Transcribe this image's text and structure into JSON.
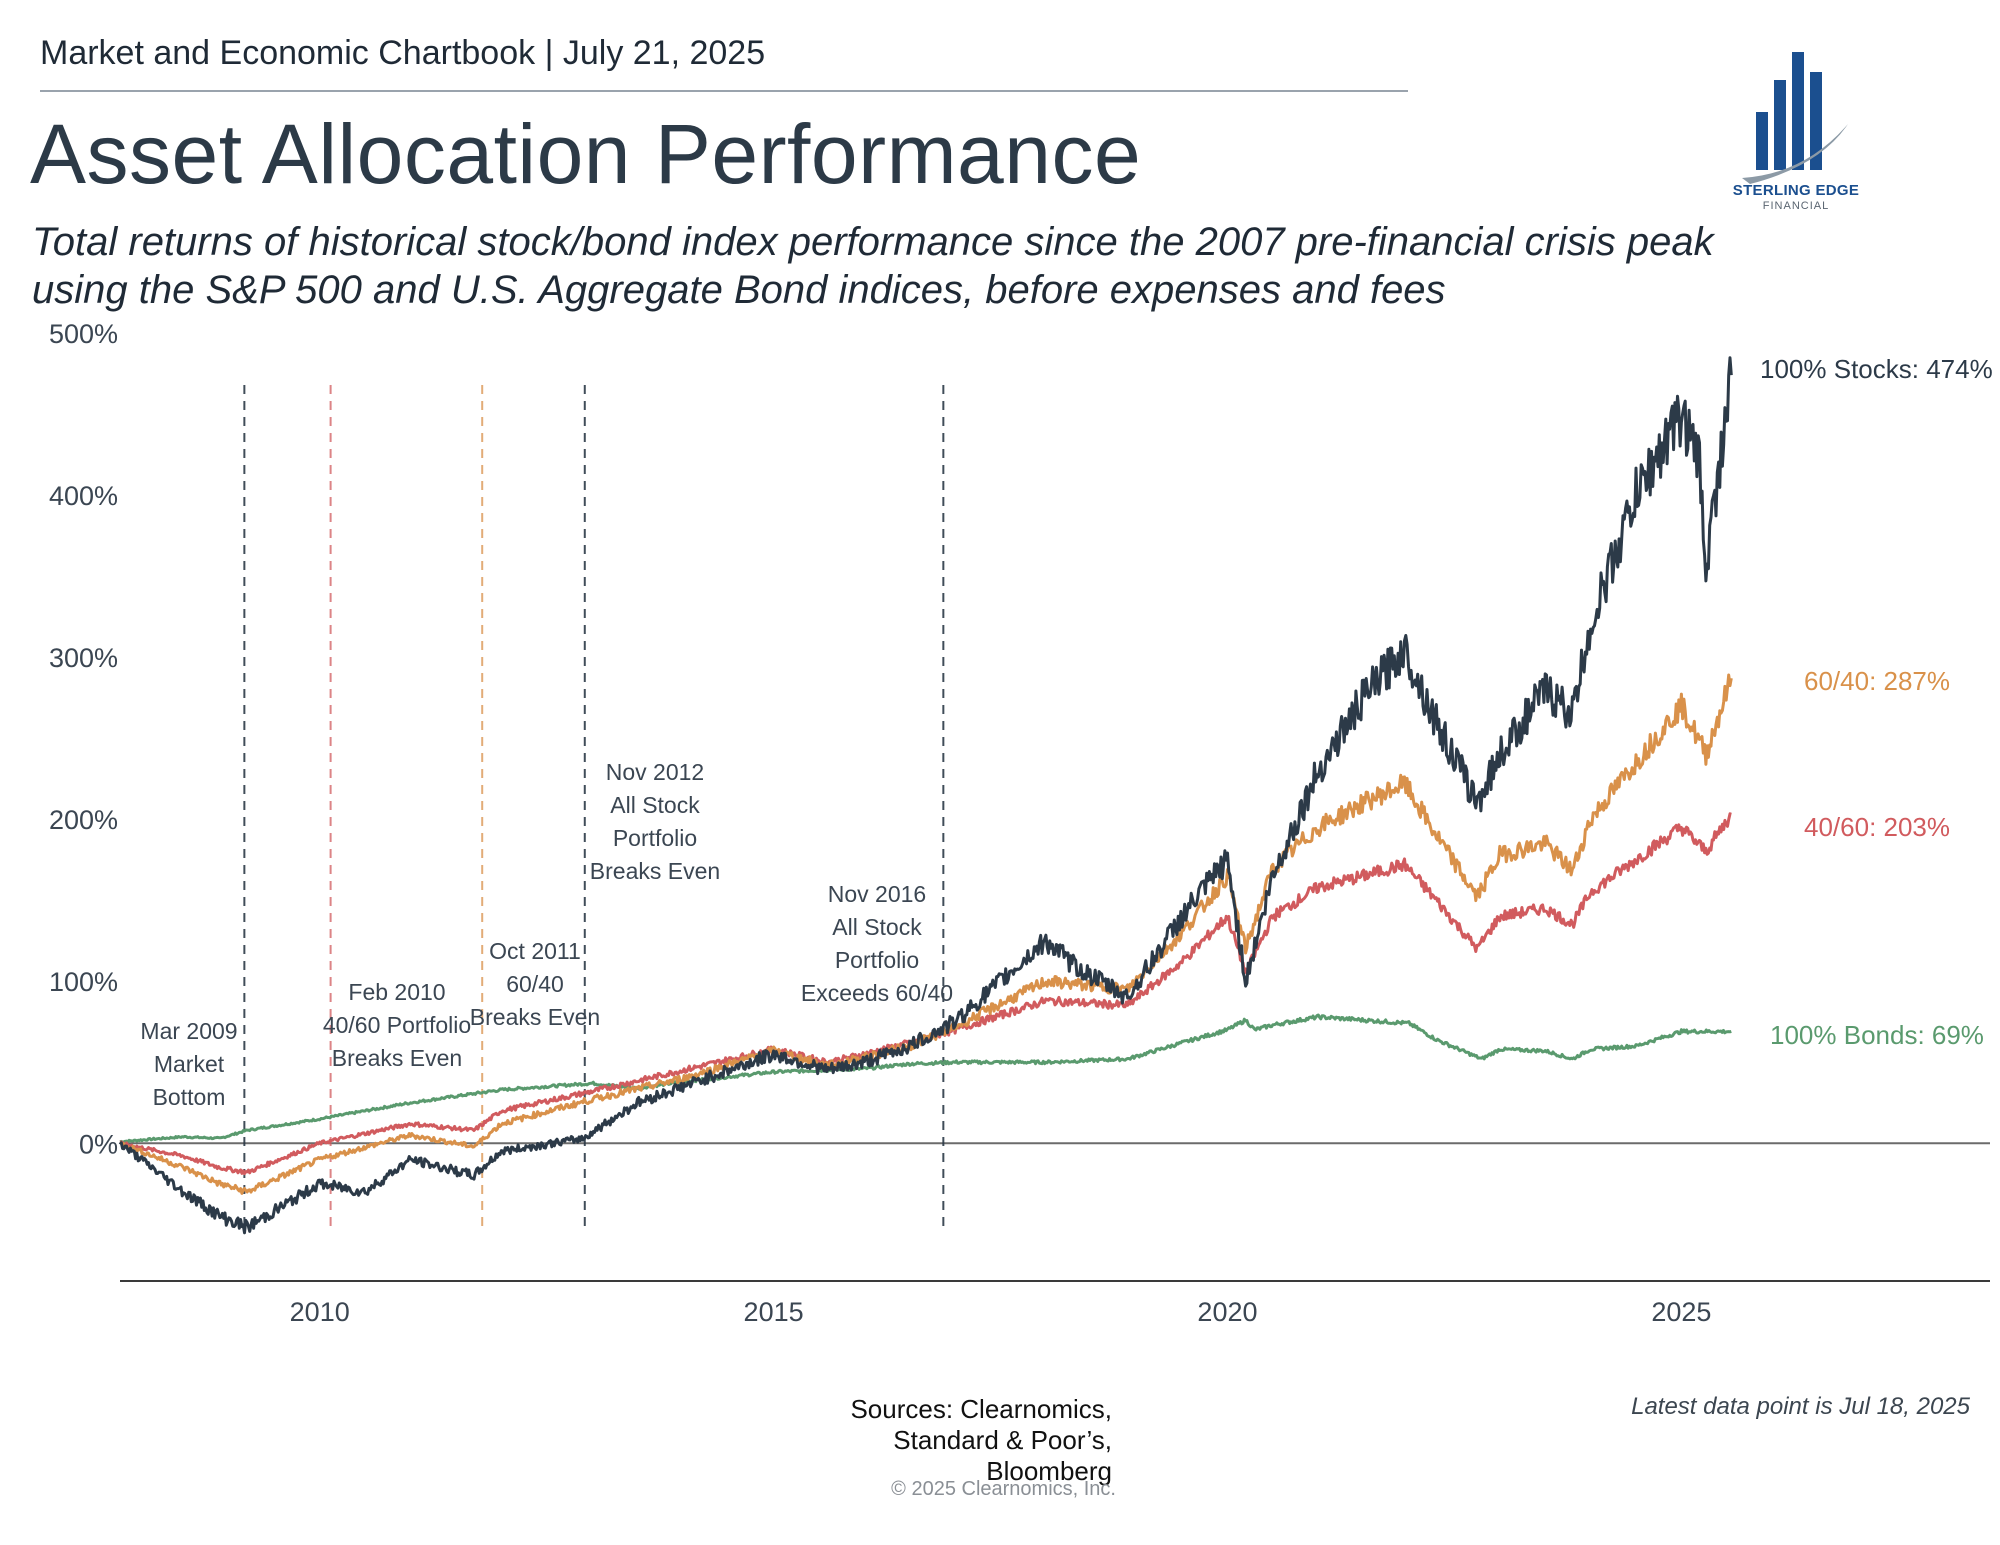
{
  "header": {
    "text": "Market and Economic Chartbook | July 21, 2025"
  },
  "title": "Asset Allocation Performance",
  "subtitle": "Total returns of historical stock/bond index performance since the 2007 pre-financial crisis peak using the S&P 500 and U.S. Aggregate Bond indices, before expenses and fees",
  "logo": {
    "name": "STERLING EDGE",
    "sub": "FINANCIAL",
    "icon": "building-bars-icon",
    "color": "#1b4f8f"
  },
  "chart_data": {
    "type": "line",
    "title": "",
    "xlabel": "",
    "ylabel": "",
    "xlim": [
      2007.8,
      2028.4
    ],
    "ylim": [
      -85,
      500
    ],
    "x_ticks": [
      2010,
      2015,
      2020,
      2025
    ],
    "y_ticks": [
      0,
      100,
      200,
      300,
      400,
      500
    ],
    "y_tick_labels": [
      "0%",
      "100%",
      "200%",
      "300%",
      "400%",
      "500%"
    ],
    "zero_line": true,
    "series": [
      {
        "name": "100% Bonds",
        "end_label": "100% Bonds: 69%",
        "color": "#5a9a6e",
        "x": [
          2007.8,
          2008.5,
          2008.9,
          2009.2,
          2010.0,
          2011.0,
          2012.0,
          2013.0,
          2013.5,
          2014.0,
          2015.0,
          2016.0,
          2016.5,
          2017.0,
          2018.0,
          2018.9,
          2019.5,
          2020.0,
          2020.2,
          2020.3,
          2020.5,
          2021.0,
          2021.5,
          2022.0,
          2022.3,
          2022.8,
          2023.0,
          2023.5,
          2023.8,
          2024.0,
          2024.5,
          2025.0,
          2025.55
        ],
        "y": [
          1,
          4,
          3,
          8,
          15,
          25,
          33,
          37,
          34,
          38,
          44,
          46,
          49,
          50,
          50,
          52,
          62,
          70,
          76,
          70,
          73,
          78,
          76,
          74,
          64,
          52,
          58,
          57,
          52,
          58,
          60,
          69,
          69
        ]
      },
      {
        "name": "40/60",
        "end_label": "40/60: 203%",
        "color": "#d15b5e",
        "x": [
          2007.8,
          2008.5,
          2008.9,
          2009.2,
          2010.0,
          2011.0,
          2011.7,
          2012.0,
          2013.0,
          2014.0,
          2015.0,
          2015.6,
          2016.0,
          2016.5,
          2017.0,
          2018.0,
          2018.9,
          2019.5,
          2020.0,
          2020.2,
          2020.5,
          2021.0,
          2021.5,
          2021.95,
          2022.3,
          2022.75,
          2023.0,
          2023.5,
          2023.8,
          2024.0,
          2024.5,
          2025.0,
          2025.27,
          2025.55
        ],
        "y": [
          0,
          -8,
          -15,
          -18,
          0,
          12,
          8,
          20,
          32,
          45,
          58,
          50,
          55,
          62,
          70,
          88,
          85,
          112,
          140,
          105,
          140,
          158,
          165,
          172,
          150,
          120,
          140,
          145,
          135,
          155,
          175,
          195,
          180,
          203
        ]
      },
      {
        "name": "60/40",
        "end_label": "60/40: 287%",
        "color": "#d9914a",
        "x": [
          2007.8,
          2008.5,
          2008.9,
          2009.2,
          2010.0,
          2011.0,
          2011.7,
          2012.0,
          2013.0,
          2014.0,
          2015.0,
          2015.6,
          2016.0,
          2016.5,
          2017.0,
          2018.0,
          2018.9,
          2019.5,
          2020.0,
          2020.2,
          2020.5,
          2021.0,
          2021.5,
          2021.95,
          2022.3,
          2022.75,
          2023.0,
          2023.5,
          2023.8,
          2024.0,
          2024.5,
          2025.0,
          2025.27,
          2025.55
        ],
        "y": [
          0,
          -15,
          -25,
          -30,
          -10,
          5,
          -2,
          12,
          27,
          40,
          57,
          48,
          53,
          60,
          72,
          100,
          95,
          130,
          165,
          120,
          170,
          195,
          210,
          222,
          190,
          152,
          178,
          185,
          168,
          200,
          235,
          270,
          240,
          287
        ]
      },
      {
        "name": "100% Stocks",
        "end_label": "100% Stocks: 474%",
        "color": "#2c3a48",
        "x": [
          2007.8,
          2008.5,
          2008.9,
          2009.2,
          2010.0,
          2010.5,
          2011.0,
          2011.7,
          2012.0,
          2012.9,
          2013.5,
          2014.0,
          2015.0,
          2015.6,
          2016.0,
          2016.5,
          2017.0,
          2018.0,
          2018.3,
          2018.9,
          2019.5,
          2020.0,
          2020.2,
          2020.5,
          2021.0,
          2021.5,
          2021.95,
          2022.3,
          2022.75,
          2023.0,
          2023.5,
          2023.8,
          2024.0,
          2024.5,
          2025.0,
          2025.2,
          2025.27,
          2025.55
        ],
        "y": [
          0,
          -30,
          -45,
          -52,
          -25,
          -30,
          -10,
          -20,
          -5,
          3,
          25,
          35,
          55,
          45,
          50,
          60,
          75,
          125,
          110,
          90,
          140,
          175,
          100,
          165,
          230,
          275,
          305,
          260,
          210,
          240,
          280,
          265,
          320,
          400,
          450,
          420,
          355,
          474
        ]
      }
    ],
    "annotations": [
      {
        "x": 2009.17,
        "color": "#2c3a48",
        "lines": [
          "Mar 2009",
          "Market",
          "Bottom"
        ]
      },
      {
        "x": 2010.12,
        "color": "#d15b5e",
        "lines": [
          "Feb 2010",
          "40/60 Portfolio",
          "Breaks Even"
        ]
      },
      {
        "x": 2011.79,
        "color": "#d9914a",
        "lines": [
          "Oct 2011",
          "60/40",
          "Breaks Even"
        ]
      },
      {
        "x": 2012.92,
        "color": "#2c3a48",
        "lines": [
          "Nov 2012",
          "All Stock",
          "Portfolio",
          "Breaks Even"
        ]
      },
      {
        "x": 2016.87,
        "color": "#2c3a48",
        "lines": [
          "Nov 2016",
          "All Stock",
          "Portfolio",
          "Exceeds 60/40"
        ]
      }
    ]
  },
  "footer": {
    "sources": [
      "Sources: Clearnomics,",
      "Standard & Poor’s,",
      "Bloomberg"
    ],
    "copyright": "© 2025 Clearnomics, Inc.",
    "latest": "Latest data point is Jul 18, 2025"
  }
}
